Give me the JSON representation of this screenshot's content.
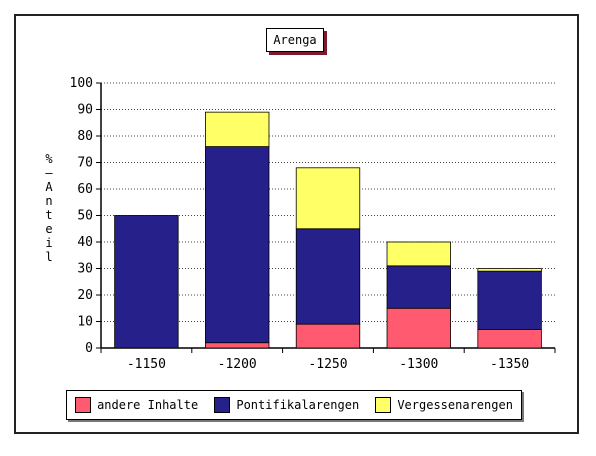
{
  "chart_data": {
    "type": "bar",
    "stacked": true,
    "title": "Arenga",
    "ylabel": "%-Anteil",
    "xlabel": "",
    "categories": [
      "-1150",
      "-1200",
      "-1250",
      "-1300",
      "-1350"
    ],
    "ylim": [
      0,
      100
    ],
    "yticks": [
      0,
      10,
      20,
      30,
      40,
      50,
      60,
      70,
      80,
      90,
      100
    ],
    "grid": true,
    "legend_position": "bottom",
    "series": [
      {
        "name": "andere Inhalte",
        "color": "#ff5a70",
        "values": [
          0,
          2,
          9,
          15,
          7
        ]
      },
      {
        "name": "Pontifikalarengen",
        "color": "#26208a",
        "values": [
          50,
          74,
          36,
          16,
          22
        ]
      },
      {
        "name": "Vergessenarengen",
        "color": "#ffff66",
        "values": [
          0,
          13,
          23,
          9,
          1
        ]
      }
    ]
  }
}
